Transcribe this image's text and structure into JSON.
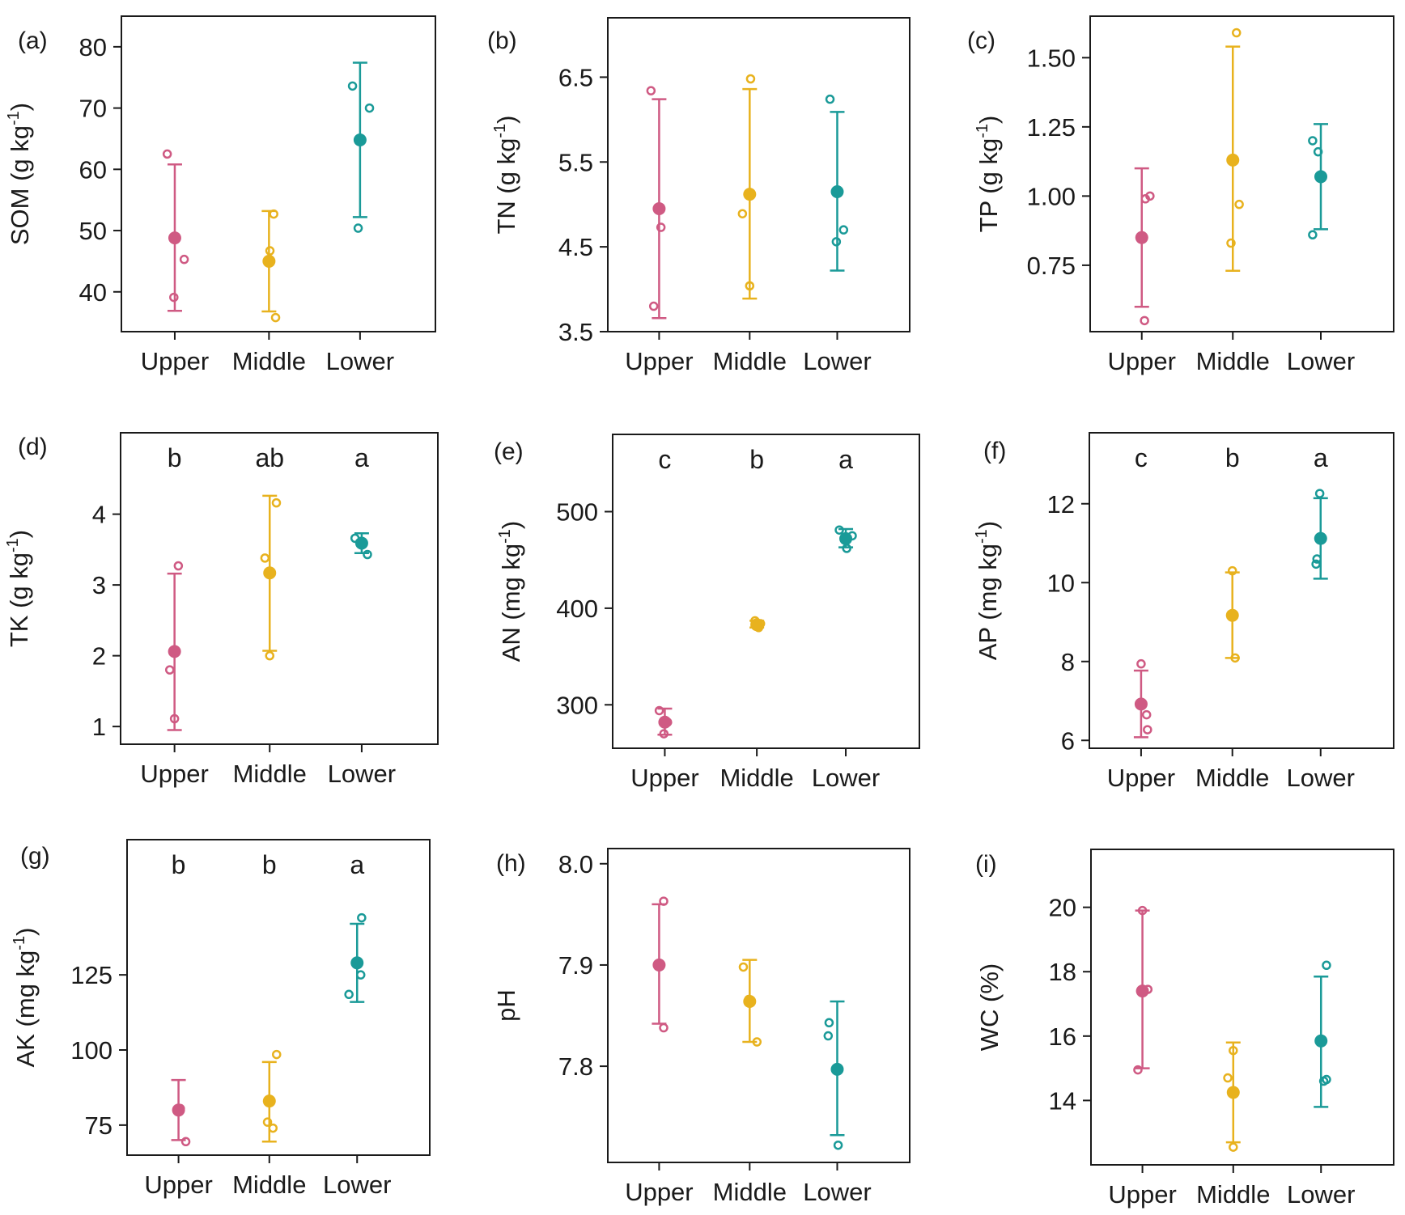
{
  "figure": {
    "name": "soil-properties-figure"
  },
  "chart_data": [
    {
      "type": "scatter",
      "panel_label": "(a)",
      "ylabel": "SOM (g kg",
      "ylabel_unit_sup": "-1",
      "ylabel_suffix": ")",
      "categories": [
        "Upper",
        "Middle",
        "Lower"
      ],
      "ylim": [
        33.5,
        85
      ],
      "ticks": [
        40,
        50,
        60,
        70,
        80
      ],
      "tick_labels": [
        "40",
        "50",
        "60",
        "70",
        "80"
      ],
      "letters": [],
      "series": [
        {
          "name": "Upper",
          "color": "#cf5a83",
          "mean": 48.8,
          "lower": 36.9,
          "upper": 60.8,
          "points": [
            62.5,
            45.3,
            39.1
          ],
          "point_offsets": [
            -0.08,
            0.1,
            -0.01
          ]
        },
        {
          "name": "Middle",
          "color": "#e8b21e",
          "mean": 45.0,
          "lower": 36.8,
          "upper": 53.2,
          "points": [
            52.7,
            46.7,
            35.8
          ],
          "point_offsets": [
            0.05,
            0.01,
            0.07
          ]
        },
        {
          "name": "Lower",
          "color": "#1a9a98",
          "mean": 64.8,
          "lower": 52.2,
          "upper": 77.4,
          "points": [
            73.6,
            70.0,
            50.4
          ],
          "point_offsets": [
            -0.08,
            0.1,
            -0.02
          ]
        }
      ]
    },
    {
      "type": "scatter",
      "panel_label": "(b)",
      "ylabel": "TN (g kg",
      "ylabel_unit_sup": "-1",
      "ylabel_suffix": ")",
      "categories": [
        "Upper",
        "Middle",
        "Lower"
      ],
      "ylim": [
        3.5,
        7.2
      ],
      "ticks": [
        3.5,
        4.5,
        5.5,
        6.5
      ],
      "tick_labels": [
        "3.5",
        "4.5",
        "5.5",
        "6.5"
      ],
      "letters": [],
      "series": [
        {
          "name": "Upper",
          "color": "#cf5a83",
          "mean": 4.95,
          "lower": 3.66,
          "upper": 6.24,
          "points": [
            6.34,
            4.73,
            3.8
          ],
          "point_offsets": [
            -0.09,
            0.02,
            -0.06
          ]
        },
        {
          "name": "Middle",
          "color": "#e8b21e",
          "mean": 5.12,
          "lower": 3.89,
          "upper": 6.36,
          "points": [
            6.48,
            4.89,
            4.04
          ],
          "point_offsets": [
            0.01,
            -0.08,
            0.0
          ]
        },
        {
          "name": "Lower",
          "color": "#1a9a98",
          "mean": 5.15,
          "lower": 4.22,
          "upper": 6.09,
          "points": [
            6.24,
            4.7,
            4.56
          ],
          "point_offsets": [
            -0.08,
            0.07,
            -0.01
          ]
        }
      ]
    },
    {
      "type": "scatter",
      "panel_label": "(c)",
      "ylabel": "TP (g kg",
      "ylabel_unit_sup": "-1",
      "ylabel_suffix": ")",
      "categories": [
        "Upper",
        "Middle",
        "Lower"
      ],
      "ylim": [
        0.51,
        1.65
      ],
      "ticks": [
        0.75,
        1.0,
        1.25,
        1.5
      ],
      "tick_labels": [
        "0.75",
        "1.00",
        "1.25",
        "1.50"
      ],
      "letters": [],
      "series": [
        {
          "name": "Upper",
          "color": "#cf5a83",
          "mean": 0.85,
          "lower": 0.6,
          "upper": 1.1,
          "points": [
            1.0,
            0.99,
            0.55
          ],
          "point_offsets": [
            0.09,
            0.04,
            0.03
          ]
        },
        {
          "name": "Middle",
          "color": "#e8b21e",
          "mean": 1.13,
          "lower": 0.73,
          "upper": 1.54,
          "points": [
            1.59,
            0.97,
            0.83
          ],
          "point_offsets": [
            0.04,
            0.07,
            -0.02
          ]
        },
        {
          "name": "Lower",
          "color": "#1a9a98",
          "mean": 1.07,
          "lower": 0.88,
          "upper": 1.26,
          "points": [
            1.2,
            1.16,
            0.86
          ],
          "point_offsets": [
            -0.09,
            -0.03,
            -0.09
          ]
        }
      ]
    },
    {
      "type": "scatter",
      "panel_label": "(d)",
      "ylabel": "TK (g kg",
      "ylabel_unit_sup": "-1",
      "ylabel_suffix": ")",
      "categories": [
        "Upper",
        "Middle",
        "Lower"
      ],
      "ylim": [
        0.75,
        5.15
      ],
      "ticks": [
        1,
        2,
        3,
        4
      ],
      "tick_labels": [
        "1",
        "2",
        "3",
        "4"
      ],
      "letters": [
        "b",
        "ab",
        "a"
      ],
      "series": [
        {
          "name": "Upper",
          "color": "#cf5a83",
          "mean": 2.06,
          "lower": 0.95,
          "upper": 3.16,
          "points": [
            3.27,
            1.8,
            1.11
          ],
          "point_offsets": [
            0.04,
            -0.05,
            0.0
          ]
        },
        {
          "name": "Middle",
          "color": "#e8b21e",
          "mean": 3.17,
          "lower": 2.07,
          "upper": 4.26,
          "points": [
            4.16,
            3.38,
            2.0
          ],
          "point_offsets": [
            0.07,
            -0.05,
            0.0
          ]
        },
        {
          "name": "Lower",
          "color": "#1a9a98",
          "mean": 3.59,
          "lower": 3.45,
          "upper": 3.73,
          "points": [
            3.66,
            3.6,
            3.43
          ],
          "point_offsets": [
            -0.07,
            -0.02,
            0.06
          ]
        }
      ]
    },
    {
      "type": "scatter",
      "panel_label": "(e)",
      "ylabel": "AN (mg kg",
      "ylabel_unit_sup": "-1",
      "ylabel_suffix": ")",
      "categories": [
        "Upper",
        "Middle",
        "Lower"
      ],
      "ylim": [
        255,
        580
      ],
      "ticks": [
        300,
        400,
        500
      ],
      "tick_labels": [
        "300",
        "400",
        "500"
      ],
      "letters": [
        "c",
        "b",
        "a"
      ],
      "series": [
        {
          "name": "Upper",
          "color": "#cf5a83",
          "mean": 282,
          "lower": 269,
          "upper": 296,
          "points": [
            294,
            282,
            270
          ],
          "point_offsets": [
            -0.06,
            0.03,
            -0.01
          ]
        },
        {
          "name": "Middle",
          "color": "#e8b21e",
          "mean": 383,
          "lower": 380,
          "upper": 387,
          "points": [
            387,
            384,
            380
          ],
          "point_offsets": [
            -0.02,
            0.04,
            0.02
          ]
        },
        {
          "name": "Lower",
          "color": "#1a9a98",
          "mean": 472,
          "lower": 463,
          "upper": 482,
          "points": [
            481,
            475,
            462
          ],
          "point_offsets": [
            -0.07,
            0.07,
            0.01
          ]
        }
      ]
    },
    {
      "type": "scatter",
      "panel_label": "(f)",
      "ylabel": "AP (mg kg",
      "ylabel_unit_sup": "-1",
      "ylabel_suffix": ")",
      "categories": [
        "Upper",
        "Middle",
        "Lower"
      ],
      "ylim": [
        5.8,
        13.8
      ],
      "ticks": [
        6,
        8,
        10,
        12
      ],
      "tick_labels": [
        "6",
        "8",
        "10",
        "12"
      ],
      "letters": [
        "c",
        "b",
        "a"
      ],
      "series": [
        {
          "name": "Upper",
          "color": "#cf5a83",
          "mean": 6.92,
          "lower": 6.08,
          "upper": 7.77,
          "points": [
            7.94,
            6.65,
            6.27
          ],
          "point_offsets": [
            0.0,
            0.06,
            0.07
          ]
        },
        {
          "name": "Middle",
          "color": "#e8b21e",
          "mean": 9.17,
          "lower": 8.09,
          "upper": 10.26,
          "points": [
            10.3,
            8.09
          ],
          "point_offsets": [
            0.0,
            0.03
          ]
        },
        {
          "name": "Lower",
          "color": "#1a9a98",
          "mean": 11.12,
          "lower": 10.1,
          "upper": 12.14,
          "points": [
            12.26,
            10.6,
            10.47
          ],
          "point_offsets": [
            -0.01,
            -0.04,
            -0.05
          ]
        }
      ]
    },
    {
      "type": "scatter",
      "panel_label": "(g)",
      "ylabel": "AK (mg kg",
      "ylabel_unit_sup": "-1",
      "ylabel_suffix": ")",
      "categories": [
        "Upper",
        "Middle",
        "Lower"
      ],
      "ylim": [
        65,
        170
      ],
      "ticks": [
        75,
        100,
        125
      ],
      "tick_labels": [
        "75",
        "100",
        "125"
      ],
      "letters": [
        "b",
        "b",
        "a"
      ],
      "series": [
        {
          "name": "Upper",
          "color": "#cf5a83",
          "mean": 80,
          "lower": 70,
          "upper": 90,
          "points": [
            80.5,
            69.5
          ],
          "point_offsets": [
            0.02,
            0.08
          ]
        },
        {
          "name": "Middle",
          "color": "#e8b21e",
          "mean": 83,
          "lower": 69.5,
          "upper": 96,
          "points": [
            98.5,
            76,
            74
          ],
          "point_offsets": [
            0.08,
            -0.02,
            0.04
          ]
        },
        {
          "name": "Lower",
          "color": "#1a9a98",
          "mean": 129,
          "lower": 116,
          "upper": 142,
          "points": [
            144,
            125,
            118.5
          ],
          "point_offsets": [
            0.05,
            0.04,
            -0.09
          ]
        }
      ]
    },
    {
      "type": "scatter",
      "panel_label": "(h)",
      "ylabel": "pH",
      "ylabel_unit_sup": "",
      "ylabel_suffix": "",
      "categories": [
        "Upper",
        "Middle",
        "Lower"
      ],
      "ylim": [
        7.705,
        8.015
      ],
      "ticks": [
        7.8,
        7.9,
        8.0
      ],
      "tick_labels": [
        "7.8",
        "7.9",
        "8.0"
      ],
      "letters": [],
      "series": [
        {
          "name": "Upper",
          "color": "#cf5a83",
          "mean": 7.9,
          "lower": 7.842,
          "upper": 7.96,
          "points": [
            7.963,
            7.838
          ],
          "point_offsets": [
            0.05,
            0.05
          ]
        },
        {
          "name": "Middle",
          "color": "#e8b21e",
          "mean": 7.864,
          "lower": 7.824,
          "upper": 7.905,
          "points": [
            7.898,
            7.824,
            7.866
          ],
          "point_offsets": [
            -0.07,
            0.08,
            -0.01
          ]
        },
        {
          "name": "Lower",
          "color": "#1a9a98",
          "mean": 7.797,
          "lower": 7.732,
          "upper": 7.864,
          "points": [
            7.843,
            7.83,
            7.722
          ],
          "point_offsets": [
            -0.09,
            -0.1,
            0.01
          ]
        }
      ]
    },
    {
      "type": "scatter",
      "panel_label": "(i)",
      "ylabel": "WC (%)",
      "ylabel_unit_sup": "",
      "ylabel_suffix": "",
      "categories": [
        "Upper",
        "Middle",
        "Lower"
      ],
      "ylim": [
        12.0,
        21.8
      ],
      "ticks": [
        14,
        16,
        18,
        20
      ],
      "tick_labels": [
        "14",
        "16",
        "18",
        "20"
      ],
      "letters": [],
      "series": [
        {
          "name": "Upper",
          "color": "#cf5a83",
          "mean": 17.4,
          "lower": 15.0,
          "upper": 19.9,
          "points": [
            19.9,
            17.45,
            14.95
          ],
          "point_offsets": [
            0.0,
            0.06,
            -0.05
          ]
        },
        {
          "name": "Middle",
          "color": "#e8b21e",
          "mean": 14.25,
          "lower": 12.7,
          "upper": 15.8,
          "points": [
            15.55,
            14.7,
            12.55
          ],
          "point_offsets": [
            0.0,
            -0.06,
            0.0
          ]
        },
        {
          "name": "Lower",
          "color": "#1a9a98",
          "mean": 15.85,
          "lower": 13.8,
          "upper": 17.85,
          "points": [
            18.2,
            14.65,
            14.6
          ],
          "point_offsets": [
            0.06,
            0.06,
            0.03
          ]
        }
      ]
    }
  ]
}
